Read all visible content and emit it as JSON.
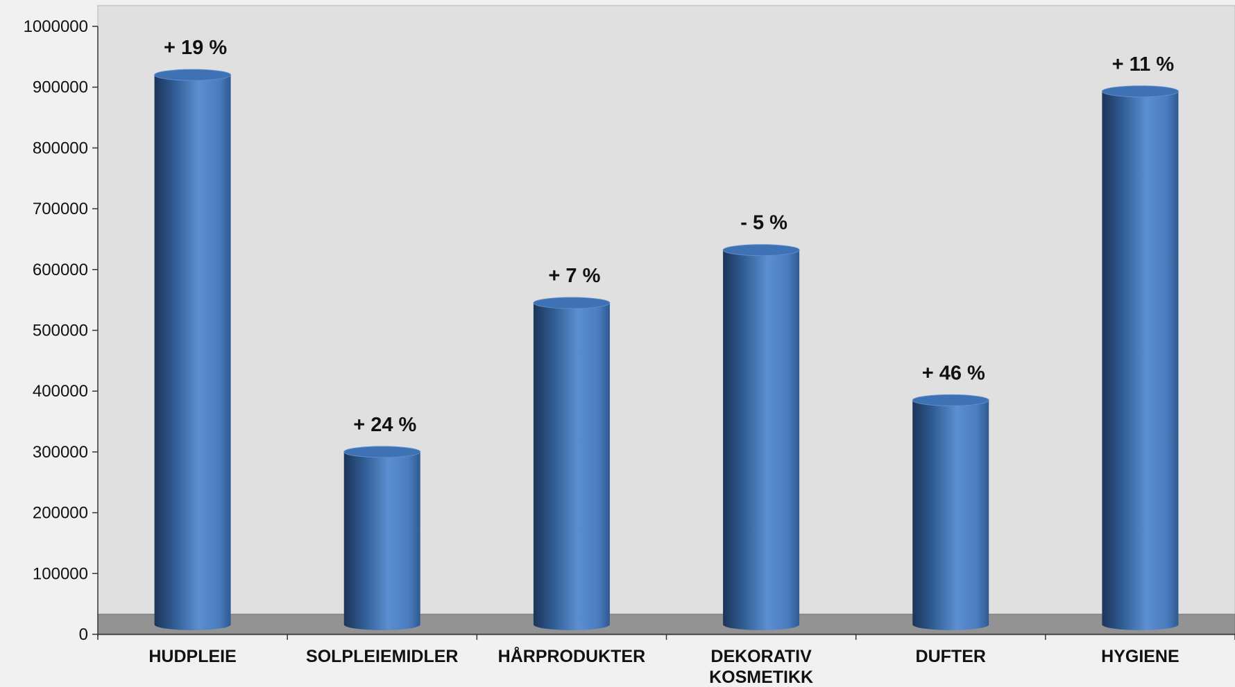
{
  "chart_data": {
    "type": "bar",
    "title": "",
    "xlabel": "",
    "ylabel": "",
    "ylim": [
      0,
      1000000
    ],
    "yticks": [
      0,
      100000,
      200000,
      300000,
      400000,
      500000,
      600000,
      700000,
      800000,
      900000,
      1000000
    ],
    "grid": false,
    "legend": "none",
    "categories": [
      [
        "HUDPLEIE"
      ],
      [
        "SOLPLEIEMIDLER"
      ],
      [
        "HÅRPRODUKTER"
      ],
      [
        "DEKORATIV",
        "KOSMETIKK"
      ],
      [
        "DUFTER"
      ],
      [
        "HYGIENE"
      ]
    ],
    "series": [
      {
        "values": [
          920000,
          300000,
          545000,
          632000,
          385000,
          893000
        ],
        "labels": [
          "+ 19 %",
          "+ 24 %",
          "+ 7 %",
          "- 5 %",
          "+ 46 %",
          "+ 11 %"
        ]
      }
    ],
    "colors": {
      "bar_light": "#5b8fd1",
      "bar_mid": "#3d6fae",
      "bar_dark": "#1c3558",
      "bar_top": "#4a7cbe",
      "plot_background": "#e0e0e0",
      "floor": "#939393",
      "page_background": "#f1f1f1"
    }
  }
}
